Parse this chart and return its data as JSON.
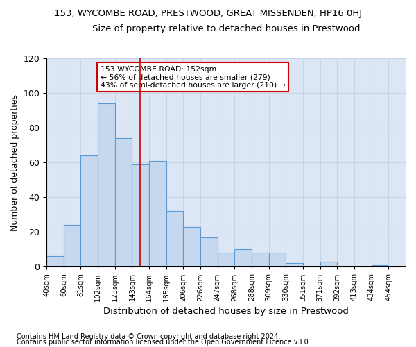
{
  "title": "153, WYCOMBE ROAD, PRESTWOOD, GREAT MISSENDEN, HP16 0HJ",
  "subtitle": "Size of property relative to detached houses in Prestwood",
  "xlabel": "Distribution of detached houses by size in Prestwood",
  "ylabel": "Number of detached properties",
  "categories": [
    "40sqm",
    "60sqm",
    "81sqm",
    "102sqm",
    "123sqm",
    "143sqm",
    "164sqm",
    "185sqm",
    "206sqm",
    "226sqm",
    "247sqm",
    "268sqm",
    "288sqm",
    "309sqm",
    "330sqm",
    "351sqm",
    "371sqm",
    "392sqm",
    "413sqm",
    "434sqm",
    "454sqm"
  ],
  "values": [
    6,
    24,
    64,
    94,
    74,
    59,
    61,
    32,
    23,
    17,
    8,
    10,
    8,
    8,
    2,
    0,
    3,
    0,
    0,
    1,
    0
  ],
  "bar_color": "#c5d8ee",
  "bar_edge_color": "#5b9bd5",
  "grid_color": "#c8d4e8",
  "background_color": "#dce6f5",
  "red_line_index": 5.45,
  "annotation_text": "153 WYCOMBE ROAD: 152sqm\n← 56% of detached houses are smaller (279)\n43% of semi-detached houses are larger (210) →",
  "annotation_box_color": "#ffffff",
  "annotation_box_edge": "#cc0000",
  "ylim": [
    0,
    120
  ],
  "footnote1": "Contains HM Land Registry data © Crown copyright and database right 2024.",
  "footnote2": "Contains public sector information licensed under the Open Government Licence v3.0."
}
